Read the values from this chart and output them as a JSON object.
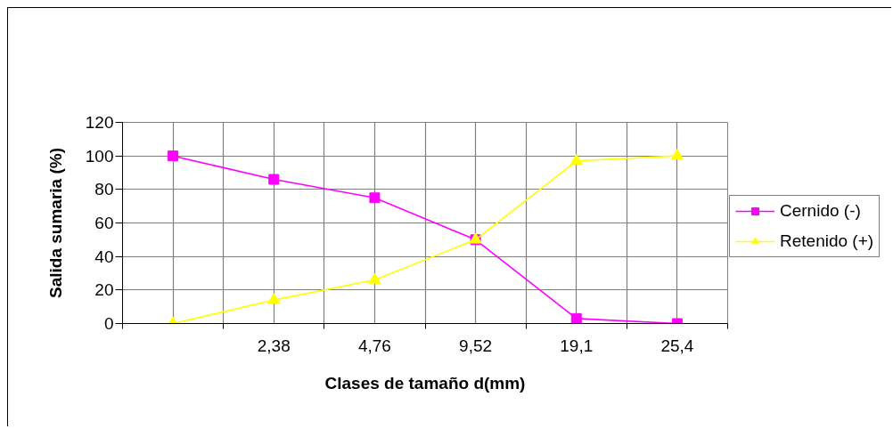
{
  "chart_data": {
    "type": "line",
    "xlabel": "Clases de tamaño d(mm)",
    "ylabel": "Salida sumaria (%)",
    "categories": [
      null,
      "2,38",
      "4,76",
      "9,52",
      "19,1",
      "25,4"
    ],
    "series": [
      {
        "name": "Cernido (-)",
        "color": "#ff00ff",
        "marker": "square",
        "values": [
          100,
          86,
          75,
          50,
          3,
          0
        ]
      },
      {
        "name": "Retenido (+)",
        "color": "#ffff00",
        "marker": "triangle",
        "values": [
          0,
          14,
          26,
          50,
          97,
          100
        ]
      }
    ],
    "ylim": [
      0,
      120
    ],
    "yticks": [
      0,
      20,
      40,
      60,
      80,
      100,
      120
    ],
    "grid": true,
    "legend": "right"
  }
}
